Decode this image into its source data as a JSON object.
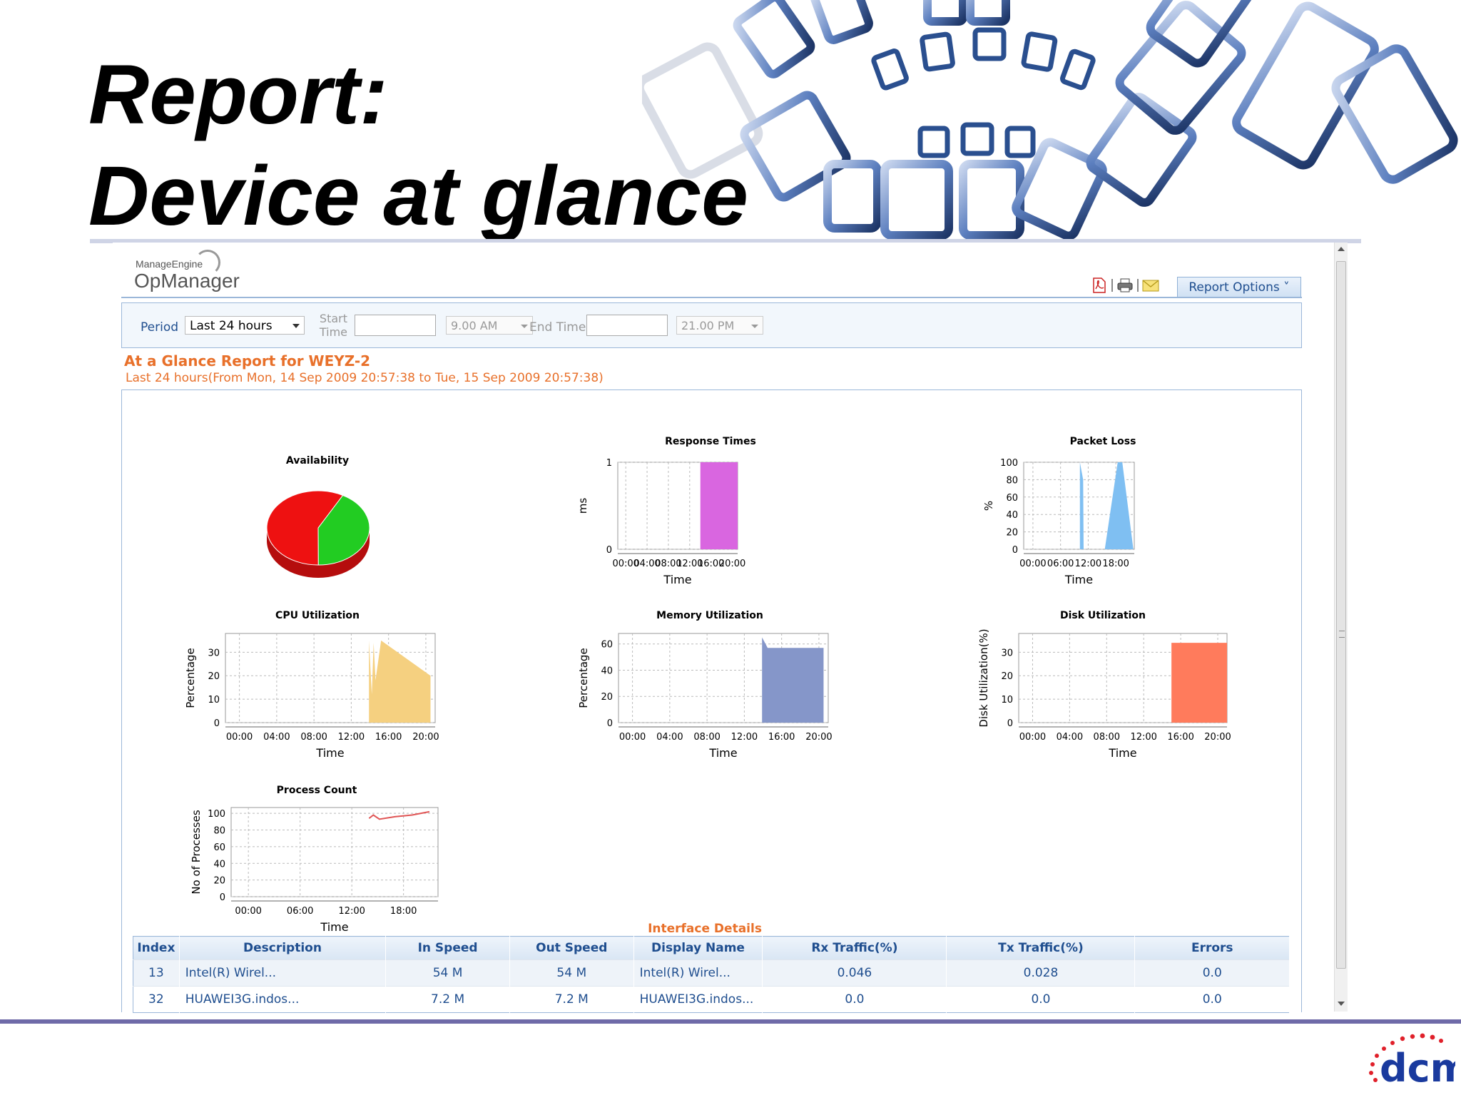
{
  "slide": {
    "title_line1": "Report:",
    "title_line2": "Device at glance"
  },
  "app": {
    "brand_small": "ManageEngine",
    "brand_big": "OpManager",
    "toolbar": {
      "icons": [
        "pdf-icon",
        "print-icon",
        "email-icon"
      ],
      "report_options": "Report Options ˅"
    },
    "filter": {
      "period_label": "Period",
      "period_value": "Last 24 hours",
      "start_label": "Start Time",
      "start_time": "9.00 AM",
      "end_label": "End Time",
      "end_time": "21.00 PM"
    },
    "report_title": "At a Glance Report for WEYZ-2",
    "report_subtitle": "Last 24 hours(From Mon, 14 Sep 2009 20:57:38 to Tue, 15 Sep 2009 20:57:38)",
    "colors": {
      "accent_orange": "#e8702a",
      "link_blue": "#1f4e8f"
    }
  },
  "chart_data": [
    {
      "type": "pie",
      "title": "Availability",
      "slices": [
        {
          "value": 42,
          "color": "#22cc22"
        },
        {
          "value": 58,
          "color": "#ee1111"
        }
      ]
    },
    {
      "type": "area",
      "title": "Response Times",
      "xlabel": "Time",
      "ylabel": "ms",
      "x_ticks": [
        "00:00",
        "04:00",
        "08:00",
        "12:00",
        "16:00",
        "20:00"
      ],
      "xlim": [
        -1.5,
        21
      ],
      "y_ticks": [
        0,
        1
      ],
      "ylim": [
        0,
        1
      ],
      "color": "#d966e0",
      "points": [
        [
          14,
          0
        ],
        [
          14,
          1
        ],
        [
          21,
          1
        ],
        [
          21,
          0
        ]
      ]
    },
    {
      "type": "area",
      "title": "Packet Loss",
      "xlabel": "Time",
      "ylabel": "%",
      "x_ticks": [
        "00:00",
        "06:00",
        "12:00",
        "18:00"
      ],
      "xlim": [
        -2,
        22
      ],
      "y_ticks": [
        0,
        20,
        40,
        60,
        80,
        100
      ],
      "ylim": [
        0,
        100
      ],
      "color": "#7fbff2",
      "points": [
        [
          10.2,
          0
        ],
        [
          10.2,
          100
        ],
        [
          10.9,
          80
        ],
        [
          11,
          0
        ],
        [
          15.6,
          0
        ],
        [
          18.4,
          100
        ],
        [
          19.4,
          100
        ],
        [
          21.8,
          0
        ]
      ]
    },
    {
      "type": "area",
      "title": "CPU Utilization",
      "xlabel": "Time",
      "ylabel": "Percentage",
      "x_ticks": [
        "00:00",
        "04:00",
        "08:00",
        "12:00",
        "16:00",
        "20:00"
      ],
      "xlim": [
        -1.5,
        21
      ],
      "y_ticks": [
        0,
        10,
        20,
        30
      ],
      "ylim": [
        0,
        38
      ],
      "color": "#f5d080",
      "points": [
        [
          13.9,
          0
        ],
        [
          13.9,
          35
        ],
        [
          14.2,
          12
        ],
        [
          14.4,
          34
        ],
        [
          14.6,
          18
        ],
        [
          15.2,
          35
        ],
        [
          20.5,
          20
        ],
        [
          20.5,
          0
        ]
      ]
    },
    {
      "type": "area",
      "title": "Memory Utilization",
      "xlabel": "Time",
      "ylabel": "Percentage",
      "x_ticks": [
        "00:00",
        "04:00",
        "08:00",
        "12:00",
        "16:00",
        "20:00"
      ],
      "xlim": [
        -1.5,
        21
      ],
      "y_ticks": [
        0,
        20,
        40,
        60
      ],
      "ylim": [
        0,
        68
      ],
      "color": "#8596c9",
      "points": [
        [
          13.9,
          0
        ],
        [
          13.9,
          65
        ],
        [
          14.5,
          57
        ],
        [
          20.5,
          57
        ],
        [
          20.5,
          0
        ]
      ]
    },
    {
      "type": "area",
      "title": "Disk Utilization",
      "xlabel": "Time",
      "ylabel": "Disk Utilization(%)",
      "x_ticks": [
        "00:00",
        "04:00",
        "08:00",
        "12:00",
        "16:00",
        "20:00"
      ],
      "xlim": [
        -1.5,
        21
      ],
      "y_ticks": [
        0,
        10,
        20,
        30
      ],
      "ylim": [
        0,
        38
      ],
      "color": "#ff7b5c",
      "points": [
        [
          15,
          0
        ],
        [
          15,
          34
        ],
        [
          21,
          34
        ],
        [
          21,
          0
        ]
      ]
    },
    {
      "type": "line",
      "title": "Process Count",
      "xlabel": "Time",
      "ylabel": "No of Processes",
      "x_ticks": [
        "00:00",
        "06:00",
        "12:00",
        "18:00"
      ],
      "xlim": [
        -2,
        22
      ],
      "y_ticks": [
        0,
        20,
        40,
        60,
        80,
        100
      ],
      "ylim": [
        0,
        107
      ],
      "color": "#e05555",
      "points": [
        [
          14,
          94
        ],
        [
          14.5,
          98
        ],
        [
          15.2,
          93
        ],
        [
          17,
          96
        ],
        [
          19,
          98
        ],
        [
          21,
          102
        ]
      ]
    }
  ],
  "interfaces": {
    "title": "Interface Details",
    "columns": [
      "Index",
      "Description",
      "In Speed",
      "Out Speed",
      "Display Name",
      "Rx Traffic(%)",
      "Tx Traffic(%)",
      "Errors"
    ],
    "rows": [
      [
        "13",
        "Intel(R) Wirel...",
        "54 M",
        "54 M",
        "Intel(R) Wirel...",
        "0.046",
        "0.028",
        "0.0"
      ],
      [
        "32",
        "HUAWEI3G.indos...",
        "7.2 M",
        "7.2 M",
        "HUAWEI3G.indos...",
        "0.0",
        "0.0",
        "0.0"
      ]
    ]
  },
  "footer": {
    "logo_text": "dcm"
  }
}
